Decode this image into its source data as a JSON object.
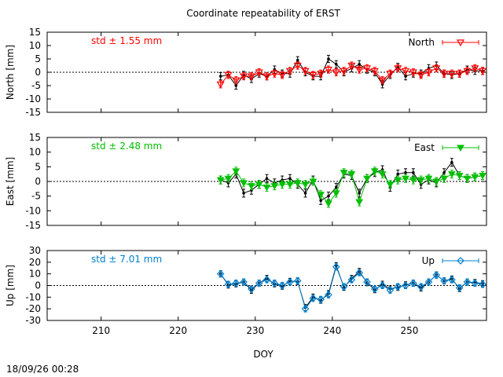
{
  "page": {
    "title": "Coordinate repeatability of ERST",
    "timestamp": "18/09/26 00:28",
    "xlabel": "DOY"
  },
  "chart_data": [
    {
      "type": "line",
      "panel": "north",
      "ylabel": "North [mm]",
      "std_label": "std ± 1.55 mm",
      "legend": "North",
      "legend_position": "top-right",
      "ylim": [
        -15,
        15
      ],
      "yticks": [
        -15,
        -10,
        -5,
        0,
        5,
        10,
        15
      ],
      "xlim": [
        203,
        260
      ],
      "xticks": [
        210,
        220,
        230,
        240,
        250
      ],
      "colors": {
        "primary": "#ff0000",
        "reference": "#000000"
      },
      "x": [
        225.5,
        226.5,
        227.5,
        228.5,
        229.5,
        230.5,
        231.5,
        232.5,
        233.5,
        234.5,
        235.5,
        236.5,
        237.5,
        238.5,
        239.5,
        240.5,
        241.5,
        242.5,
        243.5,
        244.5,
        245.5,
        246.5,
        247.5,
        248.5,
        249.5,
        250.5,
        251.5,
        252.5,
        253.5,
        254.5,
        255.5,
        256.5,
        257.5,
        258.5,
        259.5
      ],
      "series": [
        {
          "name": "North",
          "values": [
            -4.5,
            -1.0,
            -3.0,
            -1.5,
            -1.5,
            0.0,
            -1.5,
            -0.5,
            -1.0,
            0.5,
            2.5,
            0.5,
            -1.0,
            -0.5,
            1.0,
            0.0,
            0.5,
            2.5,
            1.0,
            1.5,
            0.5,
            -3.0,
            -0.5,
            1.5,
            0.5,
            0.0,
            -1.0,
            0.0,
            1.5,
            -0.5,
            -0.5,
            -0.5,
            0.5,
            1.5,
            0.5
          ]
        },
        {
          "values": [
            -1.5,
            -1.0,
            -5.0,
            -1.0,
            -2.5,
            -0.5,
            -1.5,
            1.0,
            -0.5,
            -0.5,
            4.5,
            0.0,
            -1.5,
            -1.5,
            5.0,
            3.0,
            0.0,
            1.5,
            3.0,
            1.0,
            0.0,
            -4.5,
            -1.0,
            2.0,
            -1.5,
            -0.5,
            -0.5,
            1.5,
            2.5,
            -0.5,
            -1.0,
            -0.5,
            1.0,
            0.5,
            0.5
          ]
        }
      ]
    },
    {
      "type": "line",
      "panel": "east",
      "ylabel": "East [mm]",
      "std_label": "std ± 2.48 mm",
      "legend": "East",
      "legend_position": "top-right",
      "ylim": [
        -15,
        15
      ],
      "yticks": [
        -15,
        -10,
        -5,
        0,
        5,
        10,
        15
      ],
      "xlim": [
        203,
        260
      ],
      "xticks": [
        210,
        220,
        230,
        240,
        250
      ],
      "colors": {
        "primary": "#00c000",
        "reference": "#000000"
      },
      "x": [
        225.5,
        226.5,
        227.5,
        228.5,
        229.5,
        230.5,
        231.5,
        232.5,
        233.5,
        234.5,
        235.5,
        236.5,
        237.5,
        238.5,
        239.5,
        240.5,
        241.5,
        242.5,
        243.5,
        244.5,
        245.5,
        246.5,
        247.5,
        248.5,
        249.5,
        250.5,
        251.5,
        252.5,
        253.5,
        254.5,
        255.5,
        256.5,
        257.5,
        258.5,
        259.5
      ],
      "series": [
        {
          "name": "East",
          "values": [
            0.5,
            1.0,
            3.5,
            -0.5,
            -1.5,
            -1.0,
            -2.0,
            -1.5,
            -1.0,
            -1.0,
            -0.5,
            -1.0,
            0.0,
            -4.5,
            -7.5,
            -4.0,
            3.0,
            2.5,
            -7.0,
            1.0,
            3.5,
            2.5,
            -1.0,
            0.5,
            1.0,
            0.5,
            0.5,
            1.0,
            0.0,
            1.0,
            2.5,
            2.0,
            1.0,
            1.5,
            2.0
          ]
        },
        {
          "values": [
            0.5,
            -0.5,
            2.5,
            -4.0,
            -3.0,
            -1.0,
            1.0,
            -0.5,
            0.5,
            1.0,
            -1.0,
            -4.0,
            0.5,
            -6.5,
            -5.0,
            -2.0,
            2.5,
            2.0,
            -4.0,
            1.0,
            3.0,
            4.0,
            -2.0,
            2.5,
            3.0,
            3.0,
            -1.0,
            0.5,
            -0.5,
            3.0,
            6.5,
            2.0,
            1.0,
            1.5,
            2.0
          ]
        }
      ]
    },
    {
      "type": "line",
      "panel": "up",
      "ylabel": "Up [mm]",
      "std_label": "std ± 7.01 mm",
      "legend": "Up",
      "legend_position": "top-right",
      "ylim": [
        -30,
        30
      ],
      "yticks": [
        -30,
        -20,
        -10,
        0,
        10,
        20,
        30
      ],
      "xlim": [
        203,
        260
      ],
      "xticks": [
        210,
        220,
        230,
        240,
        250
      ],
      "colors": {
        "primary": "#0080d0",
        "reference": "#000000"
      },
      "x": [
        225.5,
        226.5,
        227.5,
        228.5,
        229.5,
        230.5,
        231.5,
        232.5,
        233.5,
        234.5,
        235.5,
        236.5,
        237.5,
        238.5,
        239.5,
        240.5,
        241.5,
        242.5,
        243.5,
        244.5,
        245.5,
        246.5,
        247.5,
        248.5,
        249.5,
        250.5,
        251.5,
        252.5,
        253.5,
        254.5,
        255.5,
        256.5,
        257.5,
        258.5,
        259.5
      ],
      "series": [
        {
          "name": "Up",
          "values": [
            10.0,
            1.0,
            2.0,
            3.0,
            -3.0,
            2.0,
            5.0,
            2.0,
            0.0,
            3.0,
            4.0,
            -20.0,
            -11.0,
            -12.0,
            -8.0,
            16.0,
            -1.0,
            5.0,
            11.0,
            3.0,
            -3.0,
            0.0,
            -4.0,
            -1.0,
            0.0,
            2.0,
            -1.0,
            3.0,
            9.0,
            4.0,
            5.0,
            -2.0,
            3.0,
            2.0,
            1.0
          ]
        },
        {
          "values": [
            10.0,
            0.5,
            1.5,
            3.0,
            -4.0,
            2.0,
            6.0,
            1.5,
            -0.5,
            3.5,
            3.5,
            -19.0,
            -10.0,
            -12.5,
            -7.0,
            17.0,
            -1.5,
            6.0,
            12.0,
            2.5,
            -3.5,
            1.0,
            -3.0,
            -1.5,
            0.5,
            2.0,
            -2.0,
            3.0,
            9.0,
            4.0,
            5.5,
            -2.5,
            3.0,
            2.5,
            1.5
          ]
        }
      ]
    }
  ]
}
